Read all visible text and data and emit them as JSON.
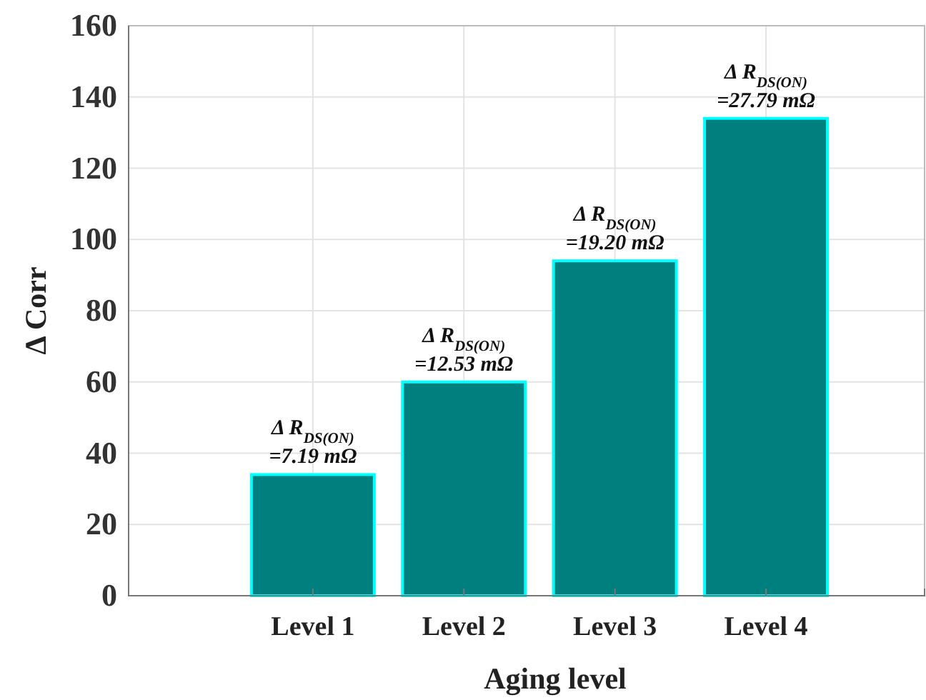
{
  "chart_data": {
    "type": "bar",
    "xlabel": "Aging level",
    "ylabel": "Δ Corr",
    "categories": [
      "Level 1",
      "Level 2",
      "Level 3",
      "Level 4"
    ],
    "values": [
      34,
      60,
      94,
      134
    ],
    "color": "#007f7f",
    "annotations": [
      {
        "text": "Δ R$_{DS(ON)}$\n=7.19 mΩ",
        "x": "Level 1",
        "y": 34
      },
      {
        "text": "Δ R$_{DS(ON)}$\n=12.53 mΩ",
        "x": "Level 2",
        "y": 60
      },
      {
        "text": "Δ R$_{DS(ON)}$\n=19.20 mΩ",
        "x": "Level 3",
        "y": 94
      },
      {
        "text": "Δ R$_{DS(ON)}$\n=27.79 mΩ",
        "x": "Level 4",
        "y": 134
      }
    ],
    "ylim": [
      0,
      160
    ],
    "yticks": [
      0,
      20,
      40,
      60,
      80,
      100,
      120,
      140,
      160
    ],
    "grid": true
  }
}
